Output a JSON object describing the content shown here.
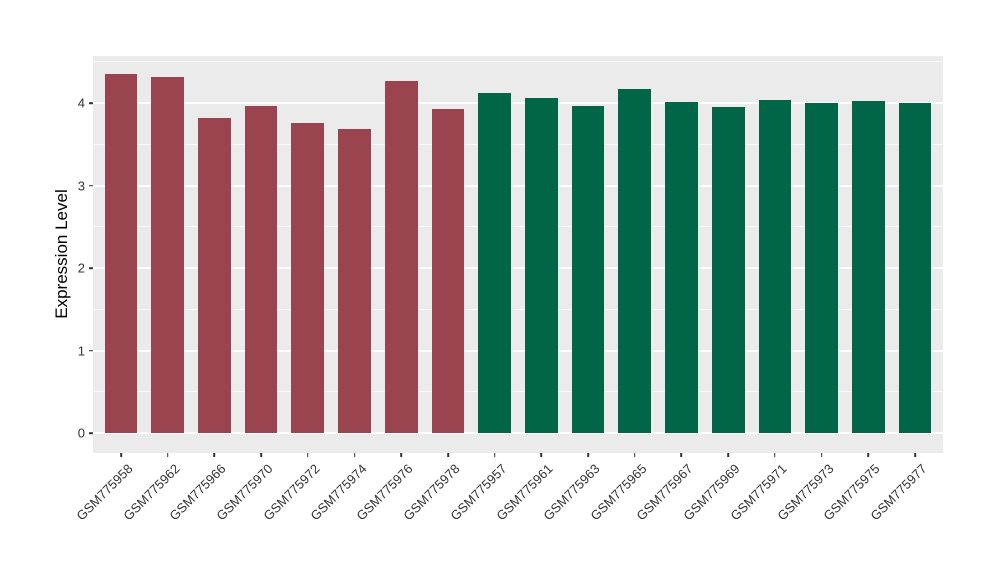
{
  "chart_data": {
    "type": "bar",
    "title": "",
    "xlabel": "",
    "ylabel": "Expression Level",
    "categories": [
      "GSM775958",
      "GSM775962",
      "GSM775966",
      "GSM775970",
      "GSM775972",
      "GSM775974",
      "GSM775976",
      "GSM775978",
      "GSM775957",
      "GSM775961",
      "GSM775963",
      "GSM775965",
      "GSM775967",
      "GSM775969",
      "GSM775971",
      "GSM775973",
      "GSM775975",
      "GSM775977"
    ],
    "values": [
      4.35,
      4.32,
      3.82,
      3.96,
      3.76,
      3.69,
      4.27,
      3.93,
      4.12,
      4.06,
      3.96,
      4.17,
      4.01,
      3.95,
      4.04,
      4.0,
      4.02,
      4.0
    ],
    "groups": [
      "A",
      "A",
      "A",
      "A",
      "A",
      "A",
      "A",
      "A",
      "B",
      "B",
      "B",
      "B",
      "B",
      "B",
      "B",
      "B",
      "B",
      "B"
    ],
    "group_colors": {
      "A": "#9A4450",
      "B": "#006647"
    },
    "yticks": [
      "0",
      "1",
      "2",
      "3",
      "4"
    ],
    "ytick_values": [
      0,
      1,
      2,
      3,
      4
    ],
    "ylim": [
      0,
      4.57
    ],
    "grid": true,
    "legend": "none",
    "panel_background": "#EBEBEB",
    "gridline_color": "#FFFFFF",
    "axis_text_color": "#333333",
    "axis_title_color": "#000000"
  }
}
